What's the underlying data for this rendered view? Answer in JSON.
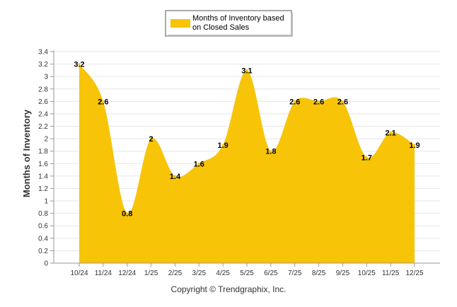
{
  "chart_data": {
    "type": "area",
    "series_name": "Months of Inventory based on Closed Sales",
    "legend_lines": [
      "Months of Inventory based",
      "on Closed Sales"
    ],
    "legend_position": "top-center",
    "ylabel": "Months of Inventory",
    "xlabel": "",
    "categories": [
      "10/24",
      "11/24",
      "12/24",
      "1/25",
      "2/25",
      "3/25",
      "4/25",
      "5/25",
      "6/25",
      "7/25",
      "8/25",
      "9/25",
      "10/25",
      "11/25",
      "12/25"
    ],
    "values": [
      3.2,
      2.6,
      0.8,
      2,
      1.4,
      1.6,
      1.9,
      3.1,
      1.8,
      2.6,
      2.6,
      2.6,
      1.7,
      2.1,
      1.9
    ],
    "value_labels": [
      "3.2",
      "2.6",
      "0.8",
      "2",
      "1.4",
      "1.6",
      "1.9",
      "3.1",
      "1.8",
      "2.6",
      "2.6",
      "2.6",
      "1.7",
      "2.1",
      "1.9"
    ],
    "ylim": [
      0,
      3.4
    ],
    "yticks": [
      "0",
      "0.2",
      "0.4",
      "0.6",
      "0.8",
      "1",
      "1.2",
      "1.4",
      "1.6",
      "1.8",
      "2",
      "2.2",
      "2.4",
      "2.6",
      "2.8",
      "3",
      "3.2",
      "3.4"
    ],
    "grid": true,
    "color": "#F7C408"
  },
  "copyright": "Copyright © Trendgraphix, Inc."
}
